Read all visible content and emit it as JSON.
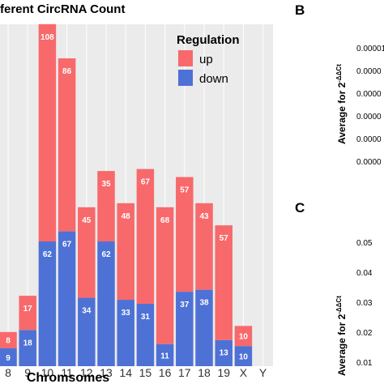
{
  "chart_data": {
    "type": "bar",
    "stacked": true,
    "title": "ferent CircRNA Count",
    "xlabel": "Chromsomes",
    "categories": [
      "8",
      "9",
      "10",
      "11",
      "12",
      "13",
      "14",
      "15",
      "16",
      "17",
      "18",
      "19",
      "X",
      "Y"
    ],
    "series": [
      {
        "name": "down",
        "values": [
          9,
          18,
          62,
          67,
          34,
          62,
          33,
          31,
          11,
          37,
          38,
          13,
          10,
          0
        ]
      },
      {
        "name": "up",
        "values": [
          8,
          17,
          108,
          86,
          45,
          35,
          48,
          67,
          68,
          57,
          43,
          57,
          10,
          0
        ]
      }
    ],
    "legend": {
      "title": "Regulation",
      "placement": "top-right",
      "entries": [
        "up",
        "down"
      ]
    },
    "colors": {
      "up": "#f8696b",
      "down": "#4e71d6",
      "panel": "#ebebeb",
      "grid": "#ffffff",
      "label_text": "#ffffff"
    },
    "grid": true,
    "ylim": [
      0,
      182
    ]
  },
  "side_panels": {
    "B": {
      "letter": "B",
      "ylabel_prefix": "Average for 2",
      "ylabel_sup": "-ΔΔCt",
      "ticks": [
        "0.00001",
        "0.0000",
        "0.0000",
        "0.0000",
        "0.0000",
        "0.0000"
      ]
    },
    "C": {
      "letter": "C",
      "ylabel_prefix": "Average for 2",
      "ylabel_sup": "-ΔΔCt",
      "ticks": [
        "0.05",
        "0.04",
        "0.03",
        "0.02",
        "0.01"
      ]
    }
  }
}
